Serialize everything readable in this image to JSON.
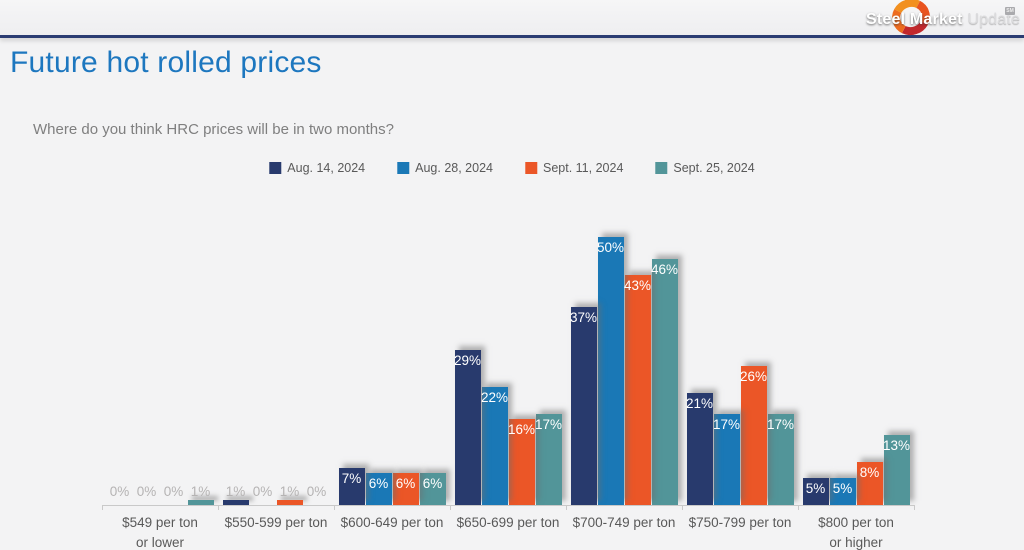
{
  "header": {
    "logo": {
      "text1": "Steel Market ",
      "text2": "Update",
      "badge": "SM"
    }
  },
  "chart_data": {
    "type": "bar",
    "title": "Future hot rolled prices",
    "subtitle": "Where do you think HRC prices will be in two months?",
    "value_suffix": "%",
    "categories": [
      "$549 per ton\nor lower",
      "$550-599 per ton",
      "$600-649 per ton",
      "$650-699 per ton",
      "$700-749 per ton",
      "$750-799 per ton",
      "$800 per ton\nor higher"
    ],
    "series": [
      {
        "name": "Aug. 14, 2024",
        "color": "#283a6d",
        "values": [
          0,
          1,
          7,
          29,
          37,
          21,
          5
        ]
      },
      {
        "name": "Aug. 28, 2024",
        "color": "#1a78b6",
        "values": [
          0,
          0,
          6,
          22,
          50,
          17,
          5
        ]
      },
      {
        "name": "Sept. 11, 2024",
        "color": "#eb5627",
        "values": [
          0,
          1,
          6,
          16,
          43,
          26,
          8
        ]
      },
      {
        "name": "Sept. 25, 2024",
        "color": "#529599",
        "values": [
          1,
          0,
          6,
          17,
          46,
          17,
          13
        ]
      }
    ],
    "ylim": [
      0,
      57
    ],
    "grid": false,
    "legend_position": "top-center",
    "label_style": {
      "inside_threshold": 5,
      "inside_color": "#ffffff",
      "outside_color": "#b5b3b3"
    }
  }
}
